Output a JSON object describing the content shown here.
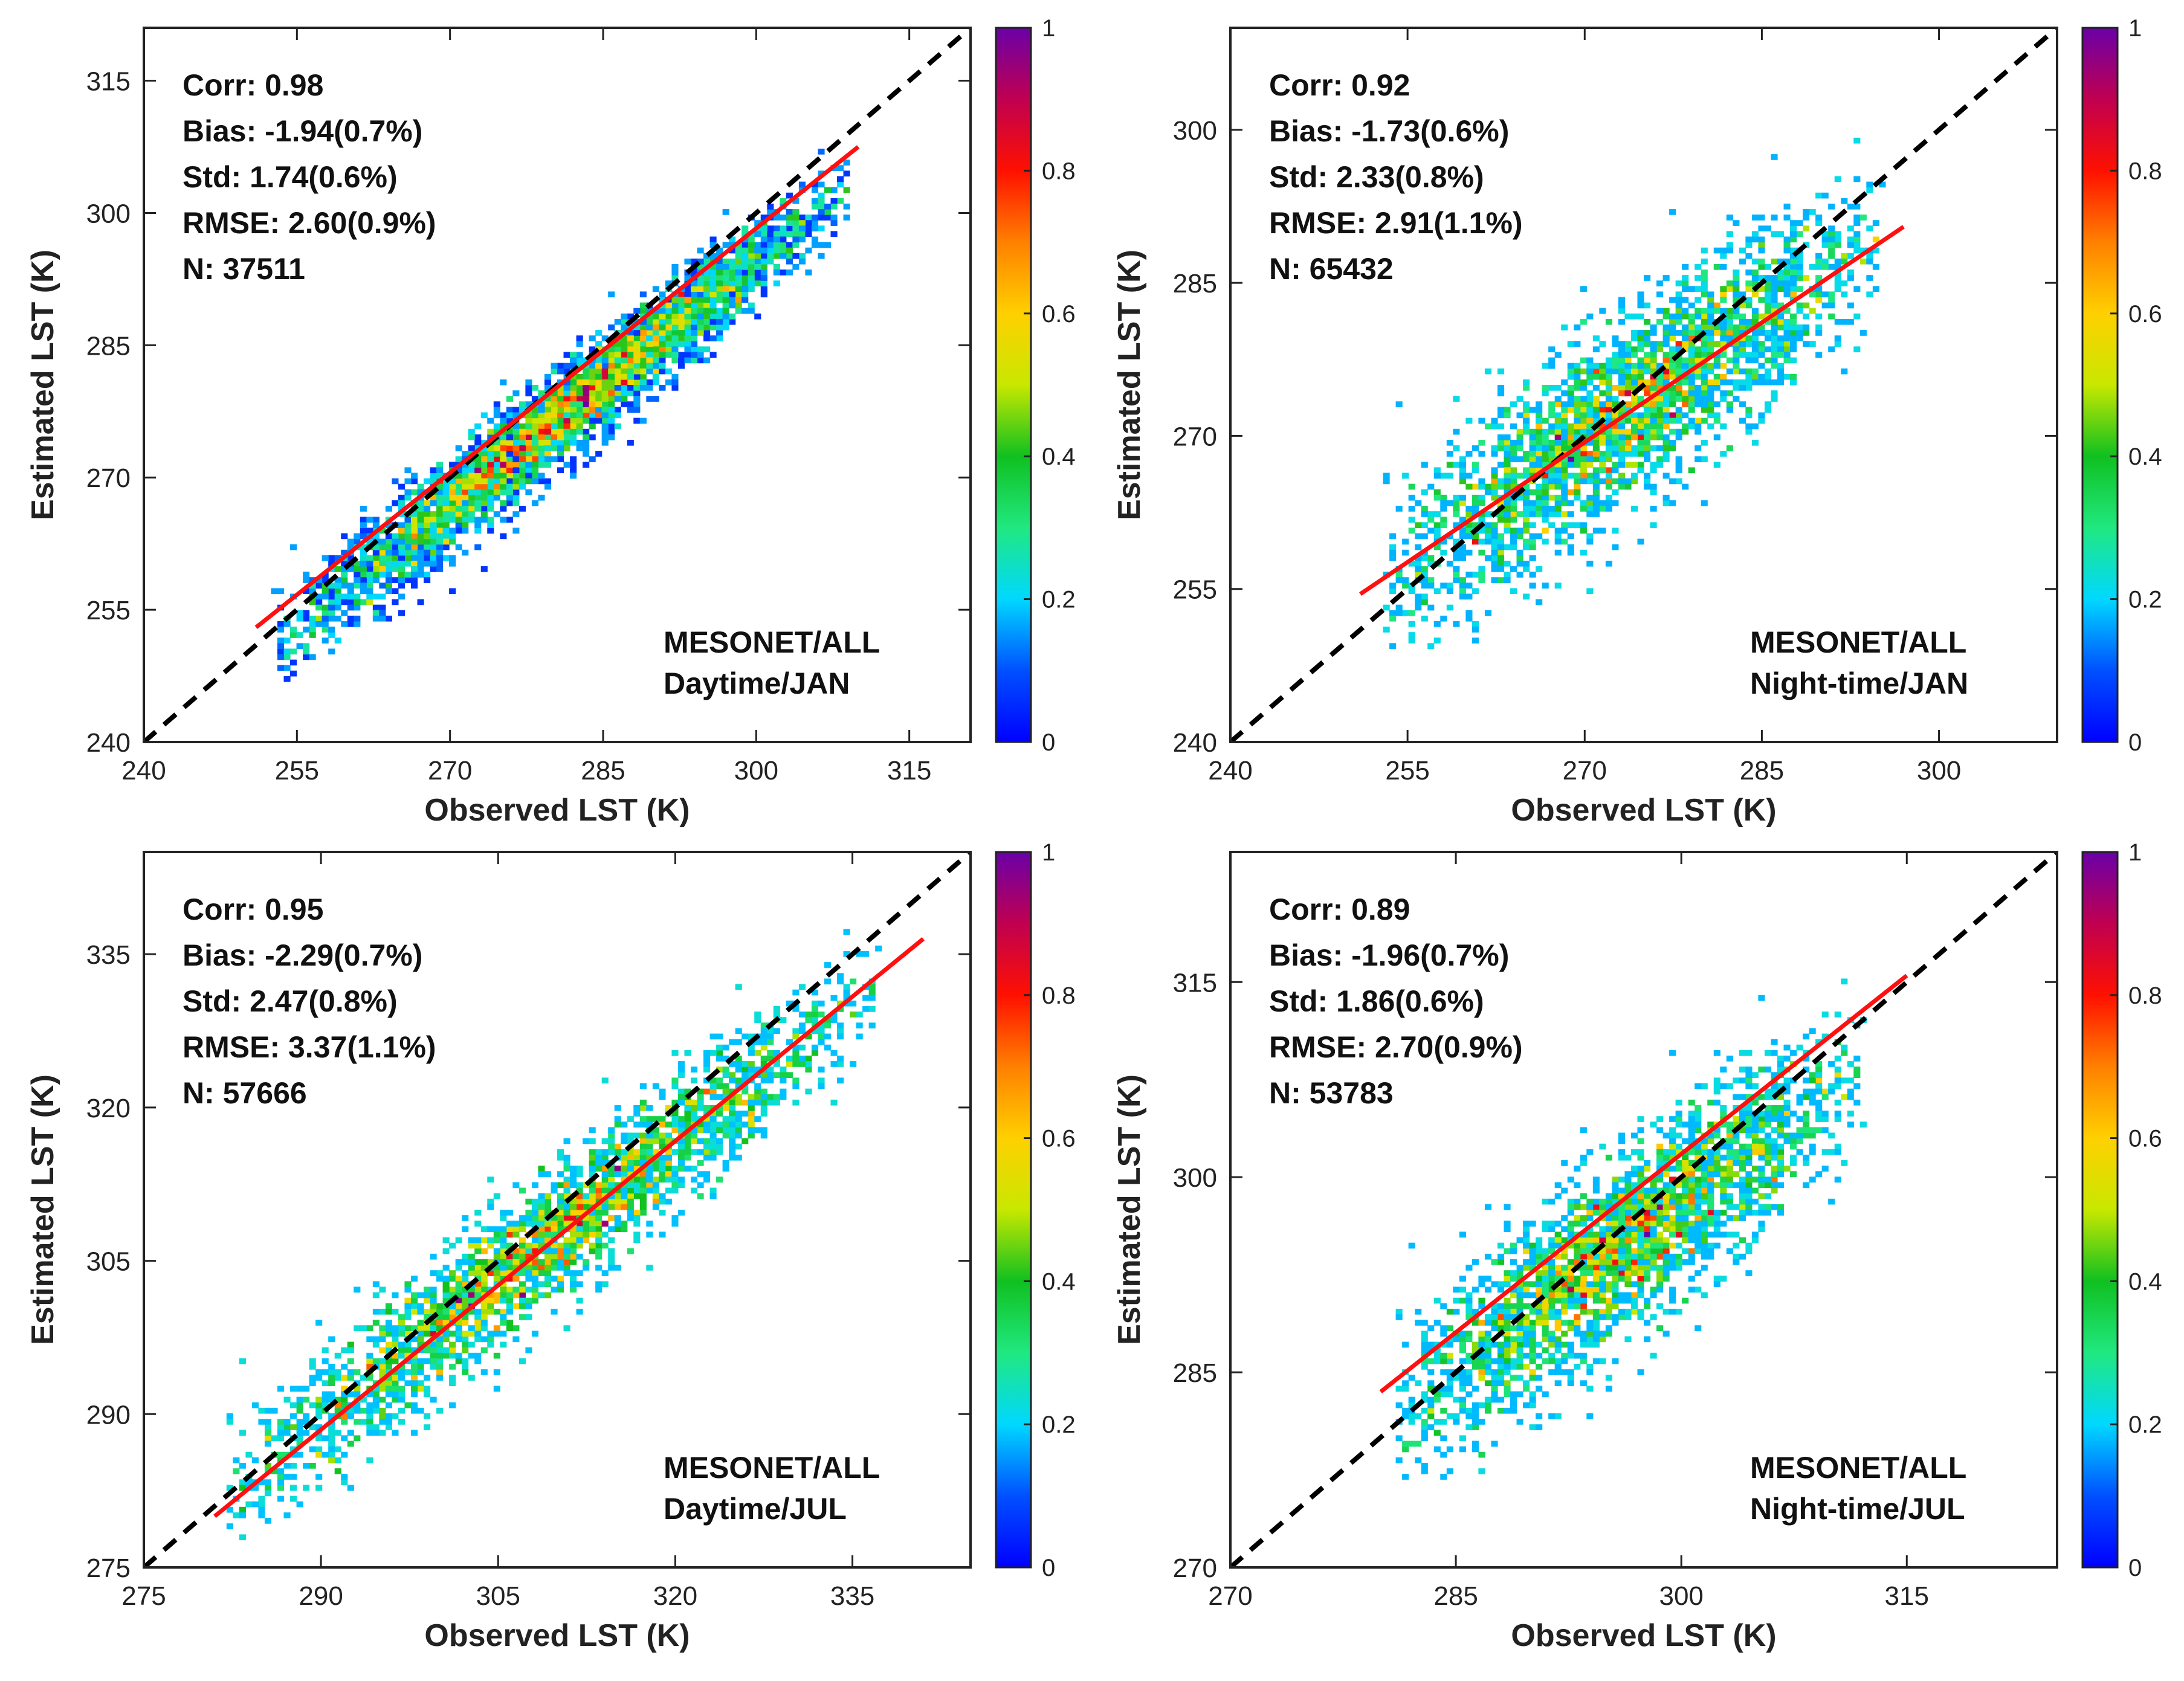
{
  "chart_data": [
    {
      "type": "scatter",
      "subtype": "density-scatter",
      "xlabel": "Observed LST (K)",
      "ylabel": "Estimated LST (K)",
      "xlim": [
        240,
        321
      ],
      "ylim": [
        240,
        321
      ],
      "xticks": [
        "240",
        "255",
        "270",
        "285",
        "300",
        "315"
      ],
      "yticks": [
        "240",
        "255",
        "270",
        "285",
        "300",
        "315"
      ],
      "stats": [
        "Corr: 0.98",
        "Bias: -1.94(0.7%)",
        "Std: 1.74(0.6%)",
        "RMSE: 2.60(0.9%)",
        "N: 37511"
      ],
      "annotation": [
        "MESONET/ALL",
        "Daytime/JAN"
      ],
      "fit_line": {
        "x": [
          251,
          310
        ],
        "y": [
          253,
          307.5
        ],
        "color": "#ff1010"
      },
      "one_to_one_line": {
        "color": "#000000",
        "style": "dashed"
      },
      "cloud": {
        "x_range": [
          253,
          309
        ],
        "center_slope": 0.92,
        "center_offset": 18.5,
        "spread": 2.6
      },
      "colorbar": {
        "range": [
          0,
          1
        ],
        "ticks": [
          "0",
          "0.2",
          "0.4",
          "0.6",
          "0.8",
          "1"
        ]
      }
    },
    {
      "type": "scatter",
      "subtype": "density-scatter",
      "xlabel": "Observed LST (K)",
      "ylabel": "Estimated LST (K)",
      "xlim": [
        240,
        310
      ],
      "ylim": [
        240,
        310
      ],
      "xticks": [
        "240",
        "255",
        "270",
        "285",
        "300"
      ],
      "yticks": [
        "240",
        "255",
        "270",
        "285",
        "300"
      ],
      "stats": [
        "Corr: 0.92",
        "Bias: -1.73(0.6%)",
        "Std: 2.33(0.8%)",
        "RMSE: 2.91(1.1%)",
        "N: 65432"
      ],
      "annotation": [
        "MESONET/ALL",
        "Night-time/JAN"
      ],
      "fit_line": {
        "x": [
          251,
          297
        ],
        "y": [
          254.5,
          290.5
        ],
        "color": "#ff1010"
      },
      "one_to_one_line": {
        "color": "#000000",
        "style": "dashed"
      },
      "cloud": {
        "x_range": [
          253,
          295
        ],
        "center_slope": 0.8,
        "center_offset": 53.5,
        "spread": 4.5
      },
      "colorbar": {
        "range": [
          0,
          1
        ],
        "ticks": [
          "0",
          "0.2",
          "0.4",
          "0.6",
          "0.8",
          "1"
        ]
      }
    },
    {
      "type": "scatter",
      "subtype": "density-scatter",
      "xlabel": "Observed LST (K)",
      "ylabel": "Estimated LST (K)",
      "xlim": [
        275,
        345
      ],
      "ylim": [
        275,
        345
      ],
      "xticks": [
        "275",
        "290",
        "305",
        "320",
        "335"
      ],
      "yticks": [
        "275",
        "290",
        "305",
        "320",
        "335"
      ],
      "stats": [
        "Corr: 0.95",
        "Bias: -2.29(0.7%)",
        "Std: 2.47(0.8%)",
        "RMSE: 3.37(1.1%)",
        "N: 57666"
      ],
      "annotation": [
        "MESONET/ALL",
        "Daytime/JUL"
      ],
      "fit_line": {
        "x": [
          281,
          341
        ],
        "y": [
          280,
          336.5
        ],
        "color": "#ff1010"
      },
      "one_to_one_line": {
        "color": "#000000",
        "style": "dashed"
      },
      "cloud": {
        "x_range": [
          282,
          337
        ],
        "center_slope": 0.9,
        "center_offset": 28.5,
        "spread": 3.2
      },
      "colorbar": {
        "range": [
          0,
          1
        ],
        "ticks": [
          "0",
          "0.2",
          "0.4",
          "0.6",
          "0.8",
          "1"
        ]
      }
    },
    {
      "type": "scatter",
      "subtype": "density-scatter",
      "xlabel": "Observed LST (K)",
      "ylabel": "Estimated LST (K)",
      "xlim": [
        270,
        325
      ],
      "ylim": [
        270,
        325
      ],
      "xticks": [
        "270",
        "285",
        "300",
        "315"
      ],
      "yticks": [
        "270",
        "285",
        "300",
        "315"
      ],
      "stats": [
        "Corr: 0.89",
        "Bias: -1.96(0.7%)",
        "Std: 1.86(0.6%)",
        "RMSE: 2.70(0.9%)",
        "N: 53783"
      ],
      "annotation": [
        "MESONET/ALL",
        "Night-time/JUL"
      ],
      "fit_line": {
        "x": [
          280,
          315
        ],
        "y": [
          283.5,
          315.5
        ],
        "color": "#ff1010"
      },
      "one_to_one_line": {
        "color": "#000000",
        "style": "dashed"
      },
      "cloud": {
        "x_range": [
          281,
          312
        ],
        "center_slope": 0.85,
        "center_offset": 43,
        "spread": 3.4
      },
      "colorbar": {
        "range": [
          0,
          1
        ],
        "ticks": [
          "0",
          "0.2",
          "0.4",
          "0.6",
          "0.8",
          "1"
        ]
      }
    }
  ]
}
